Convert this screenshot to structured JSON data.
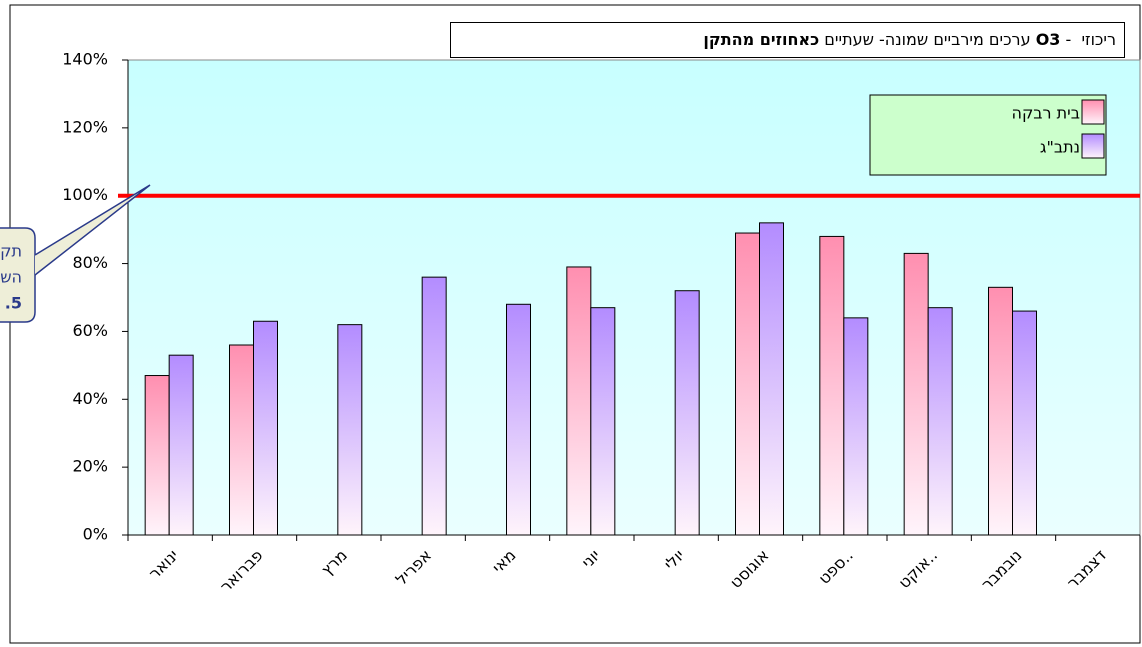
{
  "chart_data": {
    "type": "bar",
    "title_parts": [
      {
        "text": "ריכוזי  - ",
        "bold": false
      },
      {
        "text": "O3",
        "bold": true
      },
      {
        "text": " ערכים מירביים שמונה- שעתיים ",
        "bold": false
      },
      {
        "text": "כאחוזים מהתקן",
        "bold": true
      }
    ],
    "categories": [
      "ינואר",
      "פברואר",
      "מרץ",
      "אפריל",
      "מאי",
      "יוני",
      "יולי",
      "אוגוסט",
      "ספט..",
      "אוקט..",
      "נובמבר",
      "דצמבר"
    ],
    "series": [
      {
        "name": "בית רבקה",
        "color": "#ff8fb0",
        "values": [
          47,
          56,
          null,
          null,
          null,
          79,
          null,
          89,
          88,
          83,
          73,
          null
        ]
      },
      {
        "name": "נתב\"ג",
        "color": "#b38cff",
        "values": [
          53,
          63,
          62,
          76,
          68,
          67,
          72,
          92,
          64,
          67,
          66,
          null
        ]
      }
    ],
    "ylim": [
      0,
      140
    ],
    "yticks": [
      {
        "value": 0,
        "label": "0%"
      },
      {
        "value": 20,
        "label": "20%"
      },
      {
        "value": 40,
        "label": "40%"
      },
      {
        "value": 60,
        "label": "60%"
      },
      {
        "value": 80,
        "label": "80%"
      },
      {
        "value": 100,
        "label": "100%"
      },
      {
        "value": 120,
        "label": "120%"
      },
      {
        "value": 140,
        "label": "140%"
      }
    ],
    "reference_line": {
      "value": 100,
      "color": "#ff0000"
    },
    "callout_lines": [
      "תק",
      "הש",
      ".5"
    ],
    "legend": "top-right"
  }
}
